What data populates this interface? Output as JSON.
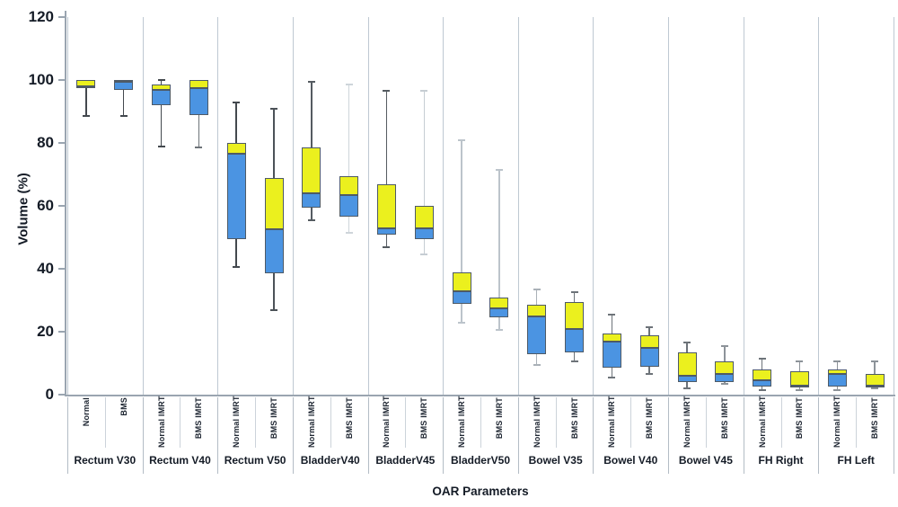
{
  "chart_data": {
    "type": "box",
    "title": "",
    "xlabel": "OAR Parameters",
    "ylabel": "Volume (%)",
    "ylim": [
      0,
      120
    ],
    "y_ticks": [
      0,
      20,
      40,
      60,
      80,
      100,
      120
    ],
    "grid": false,
    "legend": "none",
    "box_semantics": {
      "lower_segment": "Q1 to median (blue)",
      "upper_segment": "median to Q3 (yellow)",
      "whiskers": "min to max"
    },
    "groups": [
      {
        "label": "Rectum V30",
        "boxes": [
          {
            "label": "Normal",
            "min": 88.5,
            "q1": 97.5,
            "median": 98,
            "q3": 100,
            "max": 100,
            "whisker": "#43484e"
          },
          {
            "label": "BMS",
            "min": 88.5,
            "q1": 97,
            "median": 99.5,
            "q3": 100,
            "max": 100,
            "whisker": "#43484e"
          }
        ]
      },
      {
        "label": "Rectum V40",
        "boxes": [
          {
            "label": "Normal IMRT",
            "min": 79,
            "q1": 92,
            "median": 97,
            "q3": 98.5,
            "max": 100,
            "whisker": "#43484e"
          },
          {
            "label": "BMS IMRT",
            "min": 78.5,
            "q1": 89,
            "median": 97.5,
            "q3": 100,
            "max": 100,
            "whisker": "#6d7379"
          }
        ]
      },
      {
        "label": "Rectum V50",
        "boxes": [
          {
            "label": "Normal IMRT",
            "min": 40.5,
            "q1": 49.5,
            "median": 76.5,
            "q3": 80,
            "max": 93,
            "whisker": "#43484e"
          },
          {
            "label": "BMS IMRT",
            "min": 27,
            "q1": 38.5,
            "median": 52.5,
            "q3": 69,
            "max": 91,
            "whisker": "#4c5258"
          }
        ]
      },
      {
        "label": "BladderV40",
        "boxes": [
          {
            "label": "Normal IMRT",
            "min": 55.5,
            "q1": 59.5,
            "median": 64,
            "q3": 78.5,
            "max": 99.5,
            "whisker": "#555b61"
          },
          {
            "label": "BMS IMRT",
            "min": 51.5,
            "q1": 56.5,
            "median": 63.5,
            "q3": 69.5,
            "max": 98.5,
            "whisker": "#ced5da"
          }
        ]
      },
      {
        "label": "BladderV45",
        "boxes": [
          {
            "label": "Normal IMRT",
            "min": 47,
            "q1": 51,
            "median": 53,
            "q3": 67,
            "max": 96.5,
            "whisker": "#555b61"
          },
          {
            "label": "BMS IMRT",
            "min": 44.5,
            "q1": 49.5,
            "median": 53,
            "q3": 60,
            "max": 96.5,
            "whisker": "#c6cdd3"
          }
        ]
      },
      {
        "label": "BladderV50",
        "boxes": [
          {
            "label": "Normal IMRT",
            "min": 23,
            "q1": 29,
            "median": 33,
            "q3": 39,
            "max": 81,
            "whisker": "#bcc4cb"
          },
          {
            "label": "BMS IMRT",
            "min": 20.5,
            "q1": 24.5,
            "median": 27.5,
            "q3": 31,
            "max": 71.5,
            "whisker": "#bcc4cb"
          }
        ]
      },
      {
        "label": "Bowel V35",
        "boxes": [
          {
            "label": "Normal IMRT",
            "min": 9.5,
            "q1": 13,
            "median": 25,
            "q3": 28.5,
            "max": 33.5,
            "whisker": "#aab1b8"
          },
          {
            "label": "BMS IMRT",
            "min": 10.5,
            "q1": 13.5,
            "median": 21,
            "q3": 29.5,
            "max": 32.5,
            "whisker": "#6d7379"
          }
        ]
      },
      {
        "label": "Bowel V40",
        "boxes": [
          {
            "label": "Normal IMRT",
            "min": 5.5,
            "q1": 8.5,
            "median": 17,
            "q3": 19.5,
            "max": 25.5,
            "whisker": "#6d7379"
          },
          {
            "label": "BMS IMRT",
            "min": 6.5,
            "q1": 9,
            "median": 15,
            "q3": 19,
            "max": 21.5,
            "whisker": "#6d7379"
          }
        ]
      },
      {
        "label": "Bowel V45",
        "boxes": [
          {
            "label": "Normal IMRT",
            "min": 2,
            "q1": 4,
            "median": 6,
            "q3": 13.5,
            "max": 16.5,
            "whisker": "#6d7379"
          },
          {
            "label": "BMS IMRT",
            "min": 3.5,
            "q1": 4,
            "median": 6.5,
            "q3": 10.5,
            "max": 15.5,
            "whisker": "#8d9399"
          }
        ]
      },
      {
        "label": "FH Right",
        "boxes": [
          {
            "label": "Normal IMRT",
            "min": 1.5,
            "q1": 2.5,
            "median": 4.5,
            "q3": 8,
            "max": 11.5,
            "whisker": "#6d7379"
          },
          {
            "label": "BMS IMRT",
            "min": 1.5,
            "q1": 2.5,
            "median": 3,
            "q3": 7.5,
            "max": 10.5,
            "whisker": "#8d9399"
          }
        ]
      },
      {
        "label": "FH Left",
        "boxes": [
          {
            "label": "Normal IMRT",
            "min": 1.5,
            "q1": 2.5,
            "median": 6.5,
            "q3": 8,
            "max": 10.5,
            "whisker": "#8d9399"
          },
          {
            "label": "BMS IMRT",
            "min": 2,
            "q1": 2.5,
            "median": 3,
            "q3": 6.5,
            "max": 10.5,
            "whisker": "#8d9399"
          }
        ]
      }
    ]
  },
  "colors": {
    "box_fill_lower": "#4b94e2",
    "box_fill_upper": "#ebf01e",
    "box_border": "#4e5a66",
    "axis_line": "#9aa5b0",
    "text": "#141b26",
    "separator_inner": "#ccd3da",
    "separator_group": "#b3bcc5",
    "plot_separator": "#bec8d2"
  }
}
